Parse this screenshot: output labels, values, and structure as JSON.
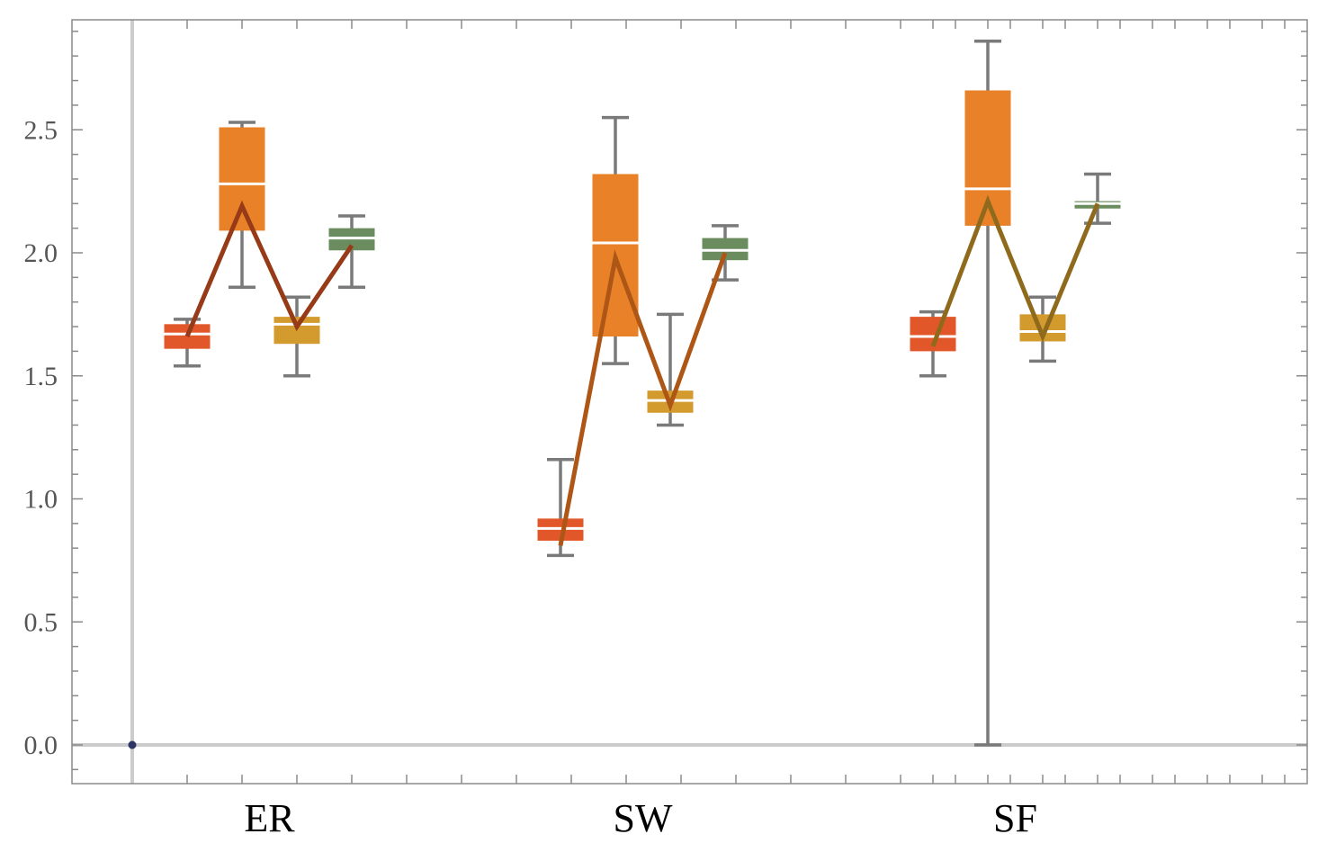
{
  "chart_data": {
    "type": "box",
    "title": "",
    "xlabel": "",
    "ylabel": "",
    "ylim": [
      -0.15,
      2.95
    ],
    "yticks": [
      0.0,
      0.5,
      1.0,
      1.5,
      2.0,
      2.5
    ],
    "ytick_labels": [
      "0.0",
      "0.5",
      "1.0",
      "1.5",
      "2.0",
      "2.5"
    ],
    "groups": [
      {
        "label": "ER",
        "boxes": [
          {
            "color": "#e2572a",
            "min": 1.54,
            "q1": 1.61,
            "median": 1.67,
            "q3": 1.71,
            "max": 1.73
          },
          {
            "color": "#e88127",
            "min": 1.86,
            "q1": 2.09,
            "median": 2.28,
            "q3": 2.51,
            "max": 2.53
          },
          {
            "color": "#d39a2d",
            "min": 1.5,
            "q1": 1.63,
            "median": 1.71,
            "q3": 1.74,
            "max": 1.82
          },
          {
            "color": "#6a8c5e",
            "min": 1.86,
            "q1": 2.01,
            "median": 2.06,
            "q3": 2.1,
            "max": 2.15
          }
        ],
        "line": {
          "color": "#963a17",
          "values": [
            1.66,
            2.19,
            1.7,
            2.03
          ]
        }
      },
      {
        "label": "SW",
        "boxes": [
          {
            "color": "#e2572a",
            "min": 0.77,
            "q1": 0.83,
            "median": 0.88,
            "q3": 0.92,
            "max": 1.16
          },
          {
            "color": "#e88127",
            "min": 1.55,
            "q1": 1.66,
            "median": 2.04,
            "q3": 2.32,
            "max": 2.55
          },
          {
            "color": "#d39a2d",
            "min": 1.3,
            "q1": 1.35,
            "median": 1.4,
            "q3": 1.44,
            "max": 1.75
          },
          {
            "color": "#6a8c5e",
            "min": 1.89,
            "q1": 1.97,
            "median": 2.01,
            "q3": 2.06,
            "max": 2.11
          }
        ],
        "line": {
          "color": "#ad5616",
          "values": [
            0.81,
            1.98,
            1.38,
            2.0
          ]
        }
      },
      {
        "label": "SF",
        "boxes": [
          {
            "color": "#e2572a",
            "min": 1.5,
            "q1": 1.6,
            "median": 1.66,
            "q3": 1.74,
            "max": 1.76
          },
          {
            "color": "#e88127",
            "min": 0.0,
            "q1": 2.11,
            "median": 2.26,
            "q3": 2.66,
            "max": 2.86
          },
          {
            "color": "#d39a2d",
            "min": 1.56,
            "q1": 1.64,
            "median": 1.68,
            "q3": 1.75,
            "max": 1.82
          },
          {
            "color": "#6a8c5e",
            "min": 2.12,
            "q1": 2.18,
            "median": 2.2,
            "q3": 2.21,
            "max": 2.32
          }
        ],
        "line": {
          "color": "#8f6a1c",
          "values": [
            1.62,
            2.21,
            1.66,
            2.2
          ]
        }
      }
    ],
    "whisker_color": "#7a7a7a",
    "grid": false,
    "origin_point": {
      "x": 0,
      "y": 0.0,
      "color": "#2b3566"
    }
  }
}
